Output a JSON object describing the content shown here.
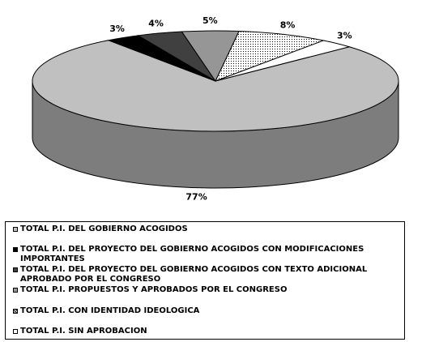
{
  "chart_data": {
    "type": "pie",
    "categories": [
      "TOTAL P.I. DEL GOBIERNO ACOGIDOS",
      "TOTAL P.I. DEL PROYECTO DEL GOBIERNO ACOGIDOS CON MODIFICACIONES IMPORTANTES",
      "TOTAL P.I. DEL PROYECTO DEL GOBIERNO ACOGIDOS CON TEXTO ADICIONAL APROBADO POR EL CONGRESO",
      "TOTAL P.I. PROPUESTOS Y APROBADOS POR EL CONGRESO",
      "TOTAL P.I. CON IDENTIDAD IDEOLOGICA",
      "TOTAL P.I. SIN APROBACION"
    ],
    "values": [
      77,
      3,
      4,
      5,
      8,
      3
    ],
    "value_labels": [
      "77%",
      "3%",
      "4%",
      "5%",
      "8%",
      "3%"
    ],
    "colors": [
      "#c0c0c0",
      "#000000",
      "#404040",
      "#969696",
      "url(#dots)",
      "#ffffff"
    ]
  }
}
